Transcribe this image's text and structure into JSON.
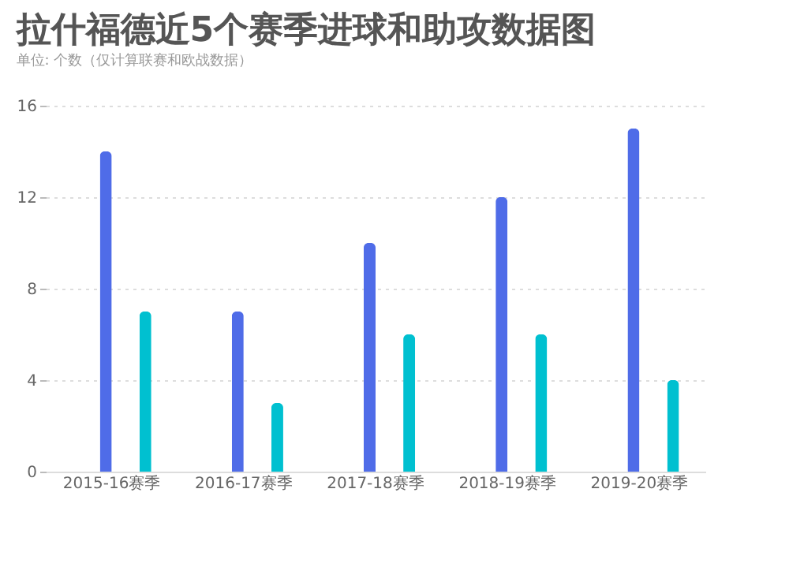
{
  "chart_data": {
    "type": "bar",
    "title": "拉什福德近5个赛季进球和助攻数据图",
    "subtitle": "单位: 个数（仅计算联赛和欧战数据）",
    "categories": [
      "2015-16赛季",
      "2016-17赛季",
      "2017-18赛季",
      "2018-19赛季",
      "2019-20赛季"
    ],
    "series": [
      {
        "color": "#4f6ce8",
        "values": [
          14,
          7,
          10,
          12,
          15
        ]
      },
      {
        "color": "#00c0d0",
        "values": [
          7,
          3,
          6,
          6,
          4
        ]
      }
    ],
    "ylim": [
      0,
      16
    ],
    "yticks": [
      0,
      4,
      8,
      12,
      16
    ],
    "grid": "y",
    "legend": false
  }
}
